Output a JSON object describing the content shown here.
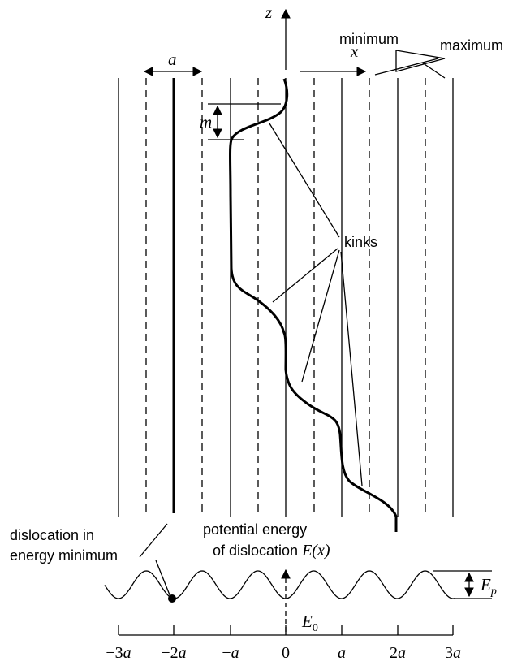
{
  "axes": {
    "z_label": "z",
    "x_label": "x",
    "a_label": "a",
    "m_label": "m",
    "ep_label": "E",
    "ep_sub": "p",
    "e0_label": "E",
    "e0_sub": "0",
    "ex_label": "E(x)"
  },
  "legend": {
    "minimum": "minimum",
    "maximum": "maximum"
  },
  "labels": {
    "kinks": "kinks",
    "dislocation_line1": "dislocation in",
    "dislocation_line2": "energy minimum",
    "potential_line1": "potential energy",
    "potential_line2": "of dislocation "
  },
  "ticks": [
    {
      "coef": "−3",
      "sym": "a"
    },
    {
      "coef": "−2",
      "sym": "a"
    },
    {
      "coef": "−",
      "sym": "a"
    },
    {
      "coef": "0",
      "sym": ""
    },
    {
      "coef": "",
      "sym": "a"
    },
    {
      "coef": "2",
      "sym": "a"
    },
    {
      "coef": "3",
      "sym": "a"
    }
  ],
  "colors": {
    "ink": "#000000",
    "background": "#ffffff"
  }
}
